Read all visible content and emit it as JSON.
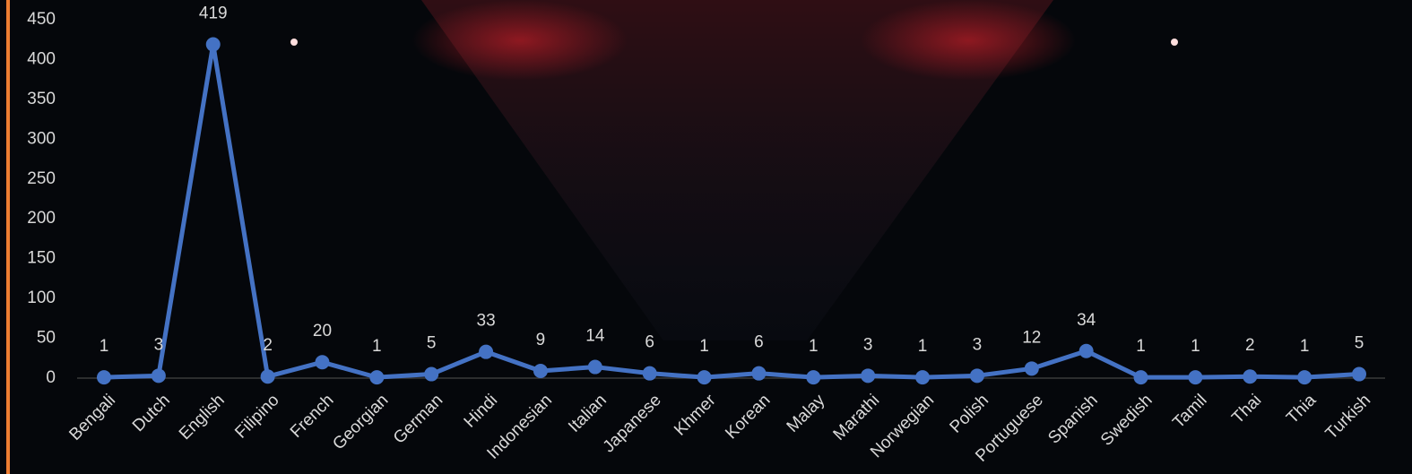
{
  "chart_data": {
    "type": "line",
    "categories": [
      "Bengali",
      "Dutch",
      "English",
      "Filipino",
      "French",
      "Georgian",
      "German",
      "Hindi",
      "Indonesian",
      "Italian",
      "Japanese",
      "Khmer",
      "Korean",
      "Malay",
      "Marathi",
      "Norwegian",
      "Polish",
      "Portuguese",
      "Spanish",
      "Swedish",
      "Tamil",
      "Thai",
      "Thia",
      "Turkish"
    ],
    "values": [
      1,
      3,
      419,
      2,
      20,
      1,
      5,
      33,
      9,
      14,
      6,
      1,
      6,
      1,
      3,
      1,
      3,
      12,
      34,
      1,
      1,
      2,
      1,
      5
    ],
    "color": "#4472c4",
    "ylim": [
      0,
      450
    ],
    "yticks": [
      0,
      50,
      100,
      150,
      200,
      250,
      300,
      350,
      400,
      450
    ],
    "grid": false
  }
}
